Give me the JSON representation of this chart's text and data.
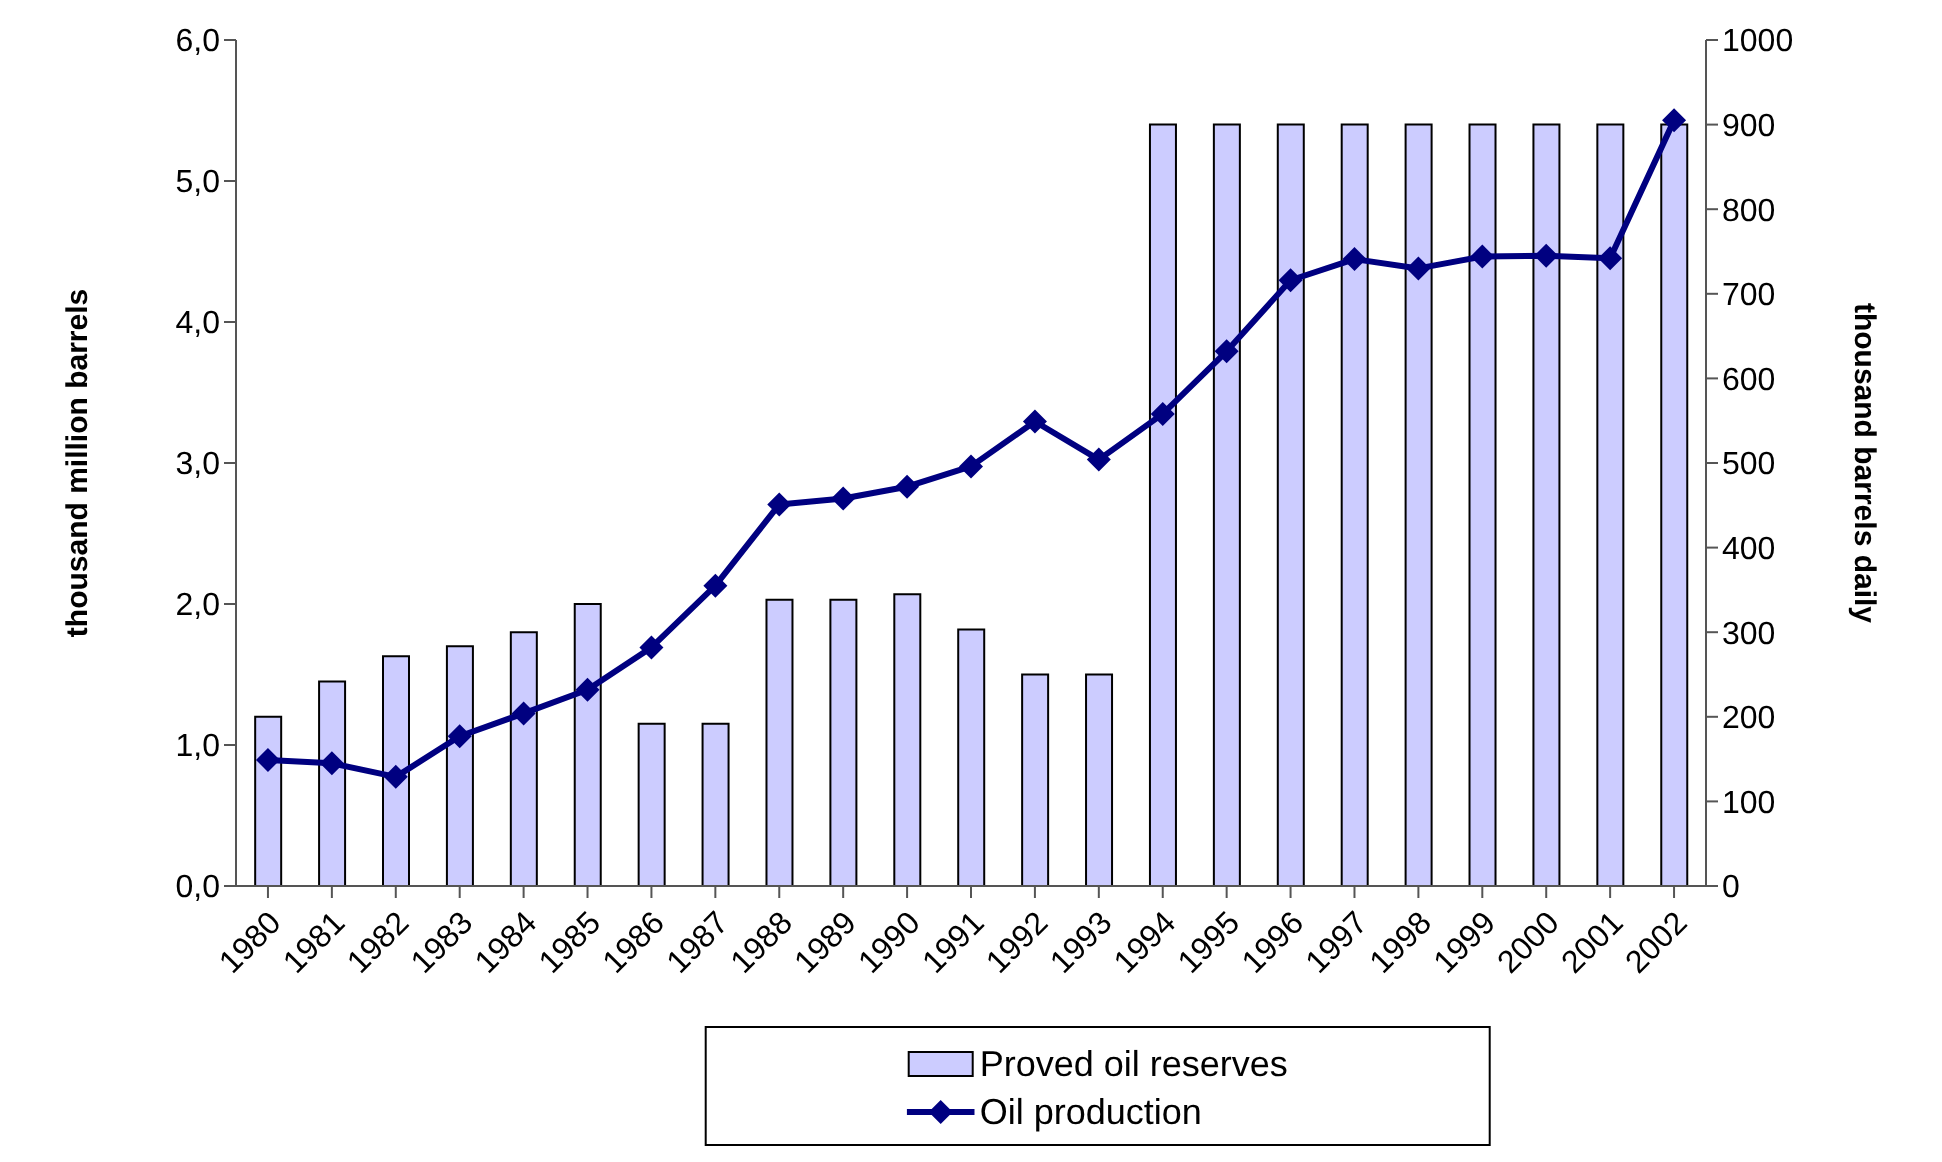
{
  "chart_data": {
    "type": "bar",
    "categories": [
      "1980",
      "1981",
      "1982",
      "1983",
      "1984",
      "1985",
      "1986",
      "1987",
      "1988",
      "1989",
      "1990",
      "1991",
      "1992",
      "1993",
      "1994",
      "1995",
      "1996",
      "1997",
      "1998",
      "1999",
      "2000",
      "2001",
      "2002"
    ],
    "series": [
      {
        "name": "Proved oil reserves",
        "color": "#ccccff",
        "values": [
          1.2,
          1.45,
          1.63,
          1.7,
          1.8,
          2.0,
          1.15,
          1.15,
          2.03,
          2.03,
          2.07,
          1.82,
          1.5,
          1.5,
          5.4,
          5.4,
          5.4,
          5.4,
          5.4,
          5.4,
          5.4,
          5.4,
          5.4
        ]
      },
      {
        "name": "Oil production",
        "type": "line",
        "axis": "y2",
        "color": "#000080",
        "marker": "diamond",
        "values": [
          149,
          145,
          129,
          177,
          204,
          232,
          282,
          355,
          451,
          458,
          472,
          496,
          549,
          504,
          558,
          632,
          716,
          741,
          730,
          744,
          745,
          742,
          905
        ]
      }
    ],
    "ylabel": "thousand million barrels",
    "y2label": "thousand barrels daily",
    "ylim": [
      0,
      6
    ],
    "yticks": [
      {
        "value": 0,
        "label": "0,0"
      },
      {
        "value": 1,
        "label": "1,0"
      },
      {
        "value": 2,
        "label": "2,0"
      },
      {
        "value": 3,
        "label": "3,0"
      },
      {
        "value": 4,
        "label": "4,0"
      },
      {
        "value": 5,
        "label": "5,0"
      },
      {
        "value": 6,
        "label": "6,0"
      }
    ],
    "y2lim": [
      0,
      1000
    ],
    "y2ticks": [
      0,
      100,
      200,
      300,
      400,
      500,
      600,
      700,
      800,
      900,
      1000
    ],
    "grid": false,
    "legend": "bottom"
  }
}
